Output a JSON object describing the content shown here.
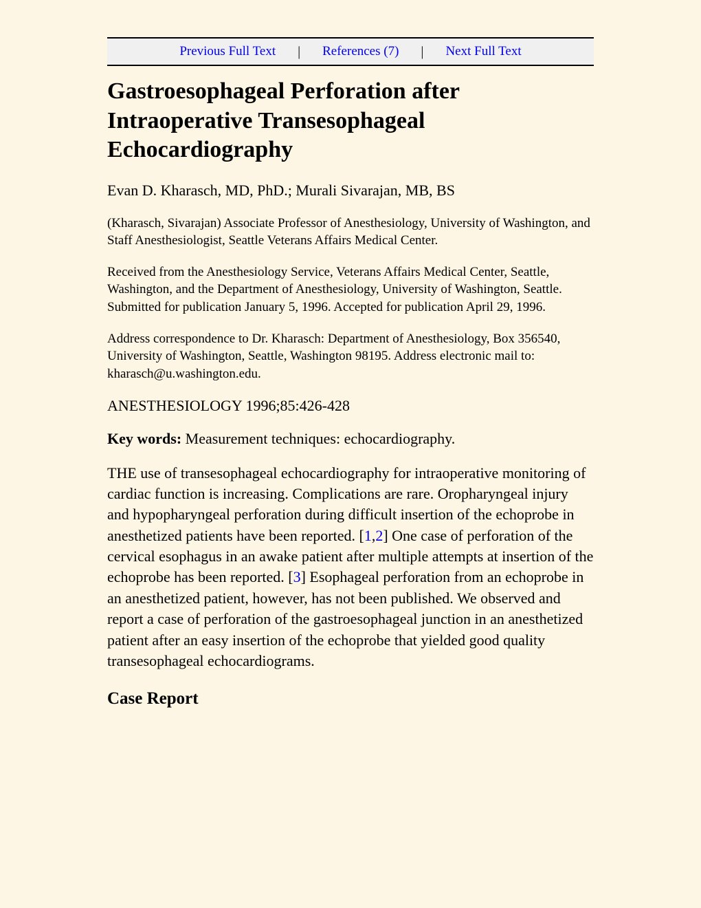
{
  "nav": {
    "prev_label": "Previous Full Text",
    "refs_label": "References (7)",
    "next_label": "Next Full Text"
  },
  "article": {
    "title": "Gastroesophageal Perforation after Intraoperative Transesophageal Echocardiography",
    "authors": "Evan D. Kharasch, MD, PhD.; Murali Sivarajan, MB, BS",
    "affiliation": "(Kharasch, Sivarajan) Associate Professor of Anesthesiology, University of Washington, and Staff Anesthesiologist, Seattle Veterans Affairs Medical Center.",
    "received": "Received from the Anesthesiology Service, Veterans Affairs Medical Center, Seattle, Washington, and the Department of Anesthesiology, University of Washington, Seattle. Submitted for publication January 5, 1996. Accepted for publication April 29, 1996.",
    "correspondence": "Address correspondence to Dr. Kharasch: Department of Anesthesiology, Box 356540, University of Washington, Seattle, Washington 98195. Address electronic mail to: kharasch@u.washington.edu.",
    "citation": "ANESTHESIOLOGY 1996;85:426-428",
    "keywords_label": "Key words:",
    "keywords_text": " Measurement techniques: echocardiography.",
    "body_part1": "THE use of transesophageal echocardiography for intraoperative monitoring of cardiac function is increasing. Complications are rare. Oropharyngeal injury and hypopharyngeal perforation during difficult insertion of the echoprobe in anesthetized patients have been reported. [",
    "ref1": "1",
    "ref_sep12": ",",
    "ref2": "2",
    "body_part2": "] One case of perforation of the cervical esophagus in an awake patient after multiple attempts at insertion of the echoprobe has been reported. [",
    "ref3": "3",
    "body_part3": "] Esophageal perforation from an echoprobe in an anesthetized patient, however, has not been published. We observed and report a case of perforation of the gastroesophageal junction in an anesthetized patient after an easy insertion of the echoprobe that yielded good quality transesophageal echocardiograms.",
    "section_case_report": "Case Report"
  },
  "colors": {
    "background": "#fdf6e5",
    "nav_background": "#f0f0f0",
    "link": "#0000ee",
    "text": "#000000",
    "border": "#000000"
  },
  "typography": {
    "font_family": "Times New Roman",
    "title_fontsize": 34,
    "authors_fontsize": 22,
    "meta_fontsize": 19,
    "body_fontsize": 22,
    "section_fontsize": 25,
    "nav_fontsize": 19
  }
}
